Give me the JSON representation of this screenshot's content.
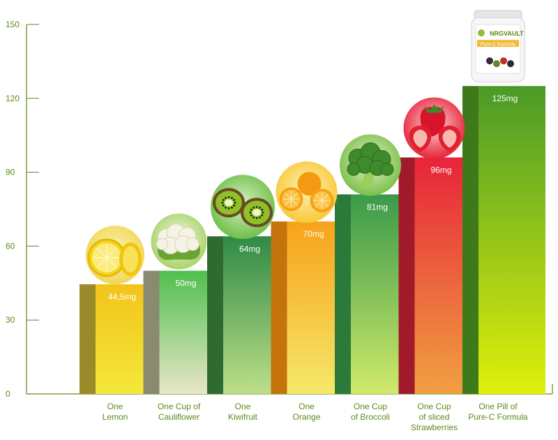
{
  "chart_data": {
    "type": "bar",
    "categories": [
      [
        "One",
        "Lemon"
      ],
      [
        "One Cup of",
        "Cauliflower"
      ],
      [
        "One",
        "Kiwifruit"
      ],
      [
        "One",
        "Orange"
      ],
      [
        "One Cup",
        "of Broccoli"
      ],
      [
        "One Cup",
        "of sliced",
        "Strawberries"
      ],
      [
        "One Pill of",
        "Pure-C Formula"
      ]
    ],
    "values": [
      44.5,
      50,
      64,
      70,
      81,
      96,
      125
    ],
    "value_labels": [
      "44,5mg",
      "50mg",
      "64mg",
      "70mg",
      "81mg",
      "96mg",
      "125mg"
    ],
    "yticks": [
      0,
      30,
      60,
      90,
      120,
      150
    ],
    "ylim": [
      0,
      150
    ],
    "grid": false,
    "colors": [
      {
        "side": "#9a8a2a",
        "top": "#f2c41c",
        "bottom": "#f5e83a"
      },
      {
        "side": "#8a8a70",
        "top": "#4fbf4f",
        "bottom": "#e9e6c8"
      },
      {
        "side": "#2f6b30",
        "top": "#2f8a45",
        "bottom": "#bedf8a"
      },
      {
        "side": "#c4740a",
        "top": "#f7a21a",
        "bottom": "#f6e86a"
      },
      {
        "side": "#2c7a3a",
        "top": "#3a9a4a",
        "bottom": "#cfe96a"
      },
      {
        "side": "#a01a2a",
        "top": "#e8243a",
        "bottom": "#f0a040"
      },
      {
        "side": "#3e7a1a",
        "top": "#4a9a28",
        "bottom": "#e0f00a"
      }
    ],
    "icons": [
      "lemon-icon",
      "cauliflower-icon",
      "kiwi-icon",
      "orange-icon",
      "broccoli-icon",
      "strawberry-icon",
      "supplement-bottle-icon"
    ],
    "product": {
      "brand": "NRGVAULT",
      "name": "Pure-C Formula"
    }
  }
}
